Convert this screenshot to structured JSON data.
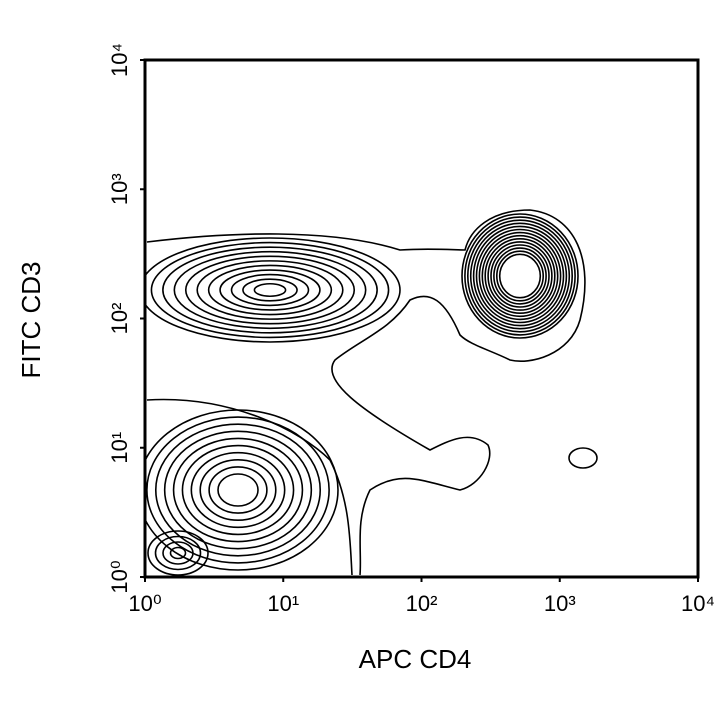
{
  "chart_data": {
    "type": "contour",
    "x_label": "APC CD4",
    "y_label": "FITC CD3",
    "xscale": "log",
    "yscale": "log",
    "xlim": [
      1,
      10000
    ],
    "ylim": [
      1,
      10000
    ],
    "xticks": [
      {
        "value": 1,
        "label": "10⁰"
      },
      {
        "value": 10,
        "label": "10¹"
      },
      {
        "value": 100,
        "label": "10²"
      },
      {
        "value": 1000,
        "label": "10³"
      },
      {
        "value": 10000,
        "label": "10⁴"
      }
    ],
    "yticks": [
      {
        "value": 1,
        "label": "10⁰"
      },
      {
        "value": 10,
        "label": "10¹"
      },
      {
        "value": 100,
        "label": "10²"
      },
      {
        "value": 1000,
        "label": "10³"
      },
      {
        "value": 10000,
        "label": "10⁴"
      }
    ],
    "color": "#000000"
  }
}
